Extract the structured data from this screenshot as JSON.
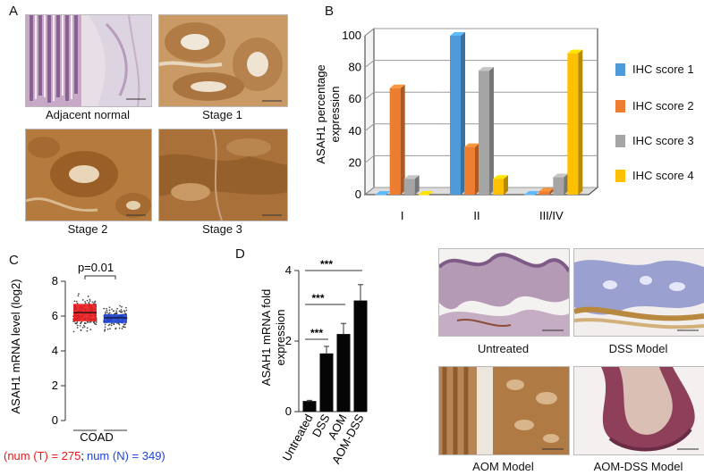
{
  "panels": {
    "a": "A",
    "b": "B",
    "c": "C",
    "d": "D"
  },
  "figure_a": {
    "images": [
      {
        "caption": "Adjacent normal"
      },
      {
        "caption": "Stage 1"
      },
      {
        "caption": "Stage 2"
      },
      {
        "caption": "Stage 3"
      }
    ]
  },
  "figure_d_images": [
    {
      "caption": "Untreated"
    },
    {
      "caption": "DSS Model"
    },
    {
      "caption": "AOM Model"
    },
    {
      "caption": "AOM-DSS Model"
    }
  ],
  "colors": {
    "score1": "#4f9bd9",
    "score2": "#ed7d31",
    "score3": "#a5a5a5",
    "score4": "#ffc000",
    "tumor": "#e8191c",
    "normal": "#1f45d6"
  },
  "chart_data": [
    {
      "type": "bar",
      "panel": "B",
      "categories": [
        "I",
        "II",
        "III/IV"
      ],
      "series": [
        {
          "name": "IHC score 1",
          "values": [
            0,
            100,
            0
          ]
        },
        {
          "name": "IHC score 2",
          "values": [
            67,
            30,
            2
          ]
        },
        {
          "name": "IHC score 3",
          "values": [
            10,
            78,
            11
          ]
        },
        {
          "name": "IHC score 4",
          "values": [
            0,
            10,
            89
          ]
        }
      ],
      "ylabel": "ASAH1 percentage expression",
      "yticks": [
        0,
        20,
        40,
        60,
        80,
        100
      ],
      "ylim": [
        0,
        100
      ],
      "legend": "right"
    },
    {
      "type": "box",
      "panel": "C",
      "categories": [
        "T",
        "N"
      ],
      "median": [
        6.2,
        5.9
      ],
      "q1": [
        5.7,
        5.6
      ],
      "q3": [
        6.7,
        6.1
      ],
      "ylabel": "ASAH1 mRNA level (log2)",
      "yticks": [
        0,
        2,
        4,
        6,
        8
      ],
      "ylim": [
        0,
        8
      ],
      "pvalue": "p=0.01",
      "xlabel": "COAD",
      "num_t": "(num (T) = 275",
      "num_sep": ";",
      "num_n": "num (N) = 349)"
    },
    {
      "type": "bar",
      "panel": "D",
      "categories": [
        "Untreated",
        "DSS",
        "AOM",
        "AOM-DSS"
      ],
      "values": [
        0.3,
        1.65,
        2.2,
        3.15
      ],
      "errors": [
        0.02,
        0.2,
        0.3,
        0.45
      ],
      "ylabel": "ASAH1 mRNA fold expression",
      "yticks": [
        0,
        2,
        4
      ],
      "ylim": [
        0,
        4
      ],
      "significance": [
        {
          "from": 0,
          "to": 1,
          "label": "***"
        },
        {
          "from": 0,
          "to": 2,
          "label": "***"
        },
        {
          "from": 0,
          "to": 3,
          "label": "***"
        }
      ]
    }
  ]
}
